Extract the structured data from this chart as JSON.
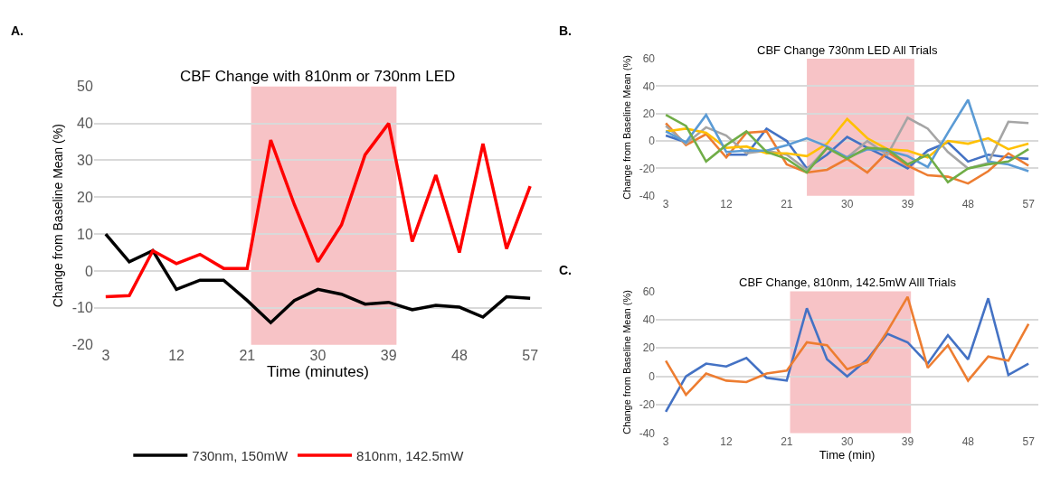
{
  "chart_data": [
    {
      "type": "line",
      "title": "CBF Change with 810nm or 730nm LED",
      "xlabel": "Time (minutes)",
      "ylabel": "Change from Baseline Mean (%)",
      "annotations": [
        "A."
      ],
      "x": [
        3,
        6,
        9,
        12,
        15,
        18,
        21,
        24,
        27,
        30,
        33,
        36,
        39,
        42,
        45,
        48,
        51,
        54,
        57
      ],
      "series": [
        {
          "name": "730nm, 150mW",
          "color": "#000000",
          "values": [
            10,
            2.5,
            5.5,
            -5,
            -2.5,
            -2.5,
            -8,
            -14,
            -8,
            -5,
            -6.3,
            -9,
            -8.5,
            -10.5,
            -9.3,
            -9.8,
            -12.5,
            -7,
            -7.4
          ]
        },
        {
          "name": "810nm, 142.5mW",
          "color": "#ff0000",
          "values": [
            -7,
            -6.7,
            5.5,
            2,
            4.5,
            0.7,
            0.7,
            35.5,
            18,
            2.5,
            12.5,
            31.5,
            40,
            8,
            26,
            5,
            34.5,
            6,
            23
          ]
        }
      ],
      "xlim": [
        1.5,
        58.5
      ],
      "xticks": [
        3,
        12,
        21,
        30,
        39,
        48,
        57
      ],
      "ylim": [
        -20,
        50
      ],
      "yticks": [
        -20,
        -10,
        0,
        10,
        20,
        30,
        40,
        50
      ],
      "grid": "y",
      "legend": "bottom",
      "bands": [
        {
          "axis": "x",
          "from": 21.5,
          "to": 40,
          "color": "#f7c3c6"
        }
      ]
    },
    {
      "type": "line",
      "title": "CBF Change 730nm LED All Trials",
      "ylabel": "Change from Baseline Mean (%)",
      "annotations": [
        "B."
      ],
      "x": [
        3,
        6,
        9,
        12,
        15,
        18,
        21,
        24,
        27,
        30,
        33,
        36,
        39,
        42,
        45,
        48,
        51,
        54,
        57
      ],
      "series": [
        {
          "color": "#4472c4",
          "values": [
            4,
            -1,
            null,
            -10,
            -10,
            9,
            0,
            -20,
            -10,
            3,
            -5,
            -12,
            -20,
            -7,
            -1,
            -15,
            -10,
            -12,
            -13
          ]
        },
        {
          "color": "#ed7d31",
          "values": [
            13,
            -3,
            5,
            -12,
            6,
            7,
            -17,
            -23,
            -21,
            -13,
            -23,
            -8,
            -18,
            -25,
            -26,
            -31,
            -22,
            -9,
            -18
          ]
        },
        {
          "color": "#a5a5a5",
          "values": [
            11,
            -2,
            10,
            4,
            -9,
            -7,
            -10,
            -21,
            -5,
            -12,
            0,
            -10,
            17,
            9,
            -8,
            -20,
            -16,
            14,
            13
          ]
        },
        {
          "color": "#ffc000",
          "values": [
            7,
            9,
            6,
            -5,
            -4,
            -9,
            -9,
            -11,
            -2,
            16,
            2,
            -6,
            -7,
            -12,
            0,
            -2,
            2,
            -6,
            -2
          ]
        },
        {
          "color": "#5b9bd5",
          "values": [
            7,
            -1,
            19,
            -8,
            -7,
            -7,
            -3,
            2,
            -4,
            -12,
            -6,
            -7,
            -11,
            -19,
            6,
            30,
            -15,
            -17,
            -22
          ]
        },
        {
          "color": "#70ad47",
          "values": [
            19,
            11,
            -15,
            -3,
            7,
            -8,
            -13,
            -23,
            -5,
            -13,
            -5,
            -6,
            -17,
            -10,
            -30,
            -20,
            -17,
            -15,
            -6
          ]
        }
      ],
      "xlim": [
        1.5,
        58.5
      ],
      "xticks": [
        3,
        12,
        21,
        30,
        39,
        48,
        57
      ],
      "ylim": [
        -40,
        60
      ],
      "yticks": [
        -40,
        -20,
        0,
        20,
        40,
        60
      ],
      "grid": "y",
      "bands": [
        {
          "axis": "x",
          "from": 24,
          "to": 40,
          "color": "#f7c3c6"
        }
      ]
    },
    {
      "type": "line",
      "title": "CBF Change, 810nm, 142.5mW Alll Trials",
      "xlabel": "Time (min)",
      "ylabel": "Change from Baseline Mean (%)",
      "annotations": [
        "C."
      ],
      "x": [
        3,
        6,
        9,
        12,
        15,
        18,
        21,
        24,
        27,
        30,
        33,
        36,
        39,
        42,
        45,
        48,
        51,
        54,
        57
      ],
      "series": [
        {
          "color": "#4472c4",
          "values": [
            -25,
            0,
            9,
            7,
            13,
            -1,
            -3,
            48,
            12,
            0,
            12,
            30,
            24,
            9,
            29,
            12,
            55,
            1,
            9
          ]
        },
        {
          "color": "#ed7d31",
          "values": [
            11,
            -13,
            2,
            -3,
            -4,
            2,
            4,
            24,
            22,
            5,
            10,
            32,
            56,
            6,
            22,
            -3,
            14,
            11,
            37
          ]
        }
      ],
      "xlim": [
        1.5,
        58.5
      ],
      "xticks": [
        3,
        12,
        21,
        30,
        39,
        48,
        57
      ],
      "ylim": [
        -40,
        60
      ],
      "yticks": [
        -40,
        -20,
        0,
        20,
        40,
        60
      ],
      "grid": "y",
      "bands": [
        {
          "axis": "x",
          "from": 21.5,
          "to": 39.5,
          "color": "#f7c3c6"
        }
      ]
    }
  ]
}
